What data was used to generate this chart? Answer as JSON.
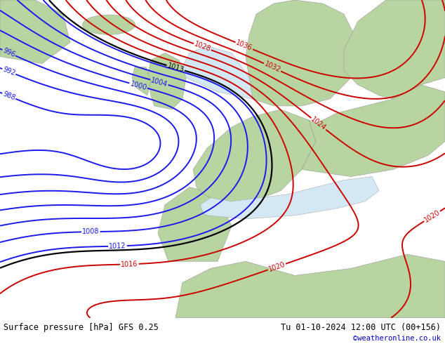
{
  "title_left": "Surface pressure [hPa] GFS 0.25",
  "title_right": "Tu 01-10-2024 12:00 UTC (00+156)",
  "credit": "©weatheronline.co.uk",
  "credit_color": "#0000cc",
  "bottom_bar_color": "#dddddd",
  "fig_width": 6.34,
  "fig_height": 4.9,
  "dpi": 100,
  "map_bg": "#c8dcc8",
  "ocean_color": "#d4e8f4",
  "land_color": "#b8d4a0",
  "contour_lw": 1.4
}
